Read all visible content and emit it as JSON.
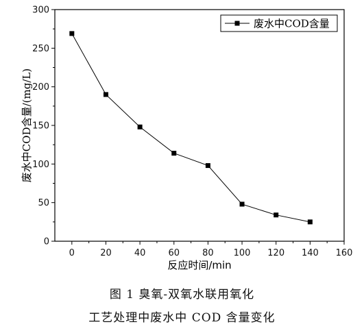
{
  "chart_data": {
    "type": "line",
    "x": [
      0,
      20,
      40,
      60,
      80,
      100,
      120,
      140
    ],
    "series": [
      {
        "name": "废水中COD含量",
        "values": [
          269,
          190,
          148,
          114,
          98,
          48,
          34,
          25
        ]
      }
    ],
    "xlabel": "反应时间/min",
    "ylabel": "废水中COD含量/(mg/L)",
    "xlim": [
      -10,
      160
    ],
    "ylim": [
      0,
      300
    ],
    "xticks": [
      0,
      20,
      40,
      60,
      80,
      100,
      120,
      140,
      160
    ],
    "yticks": [
      0,
      50,
      100,
      150,
      200,
      250,
      300
    ],
    "grid": false,
    "legend": "top-right",
    "marker": "square",
    "line_color": "#000000"
  },
  "caption": {
    "line1": "图 1   臭氧-双氧水联用氧化",
    "line2": "工艺处理中废水中 COD 含量变化"
  }
}
